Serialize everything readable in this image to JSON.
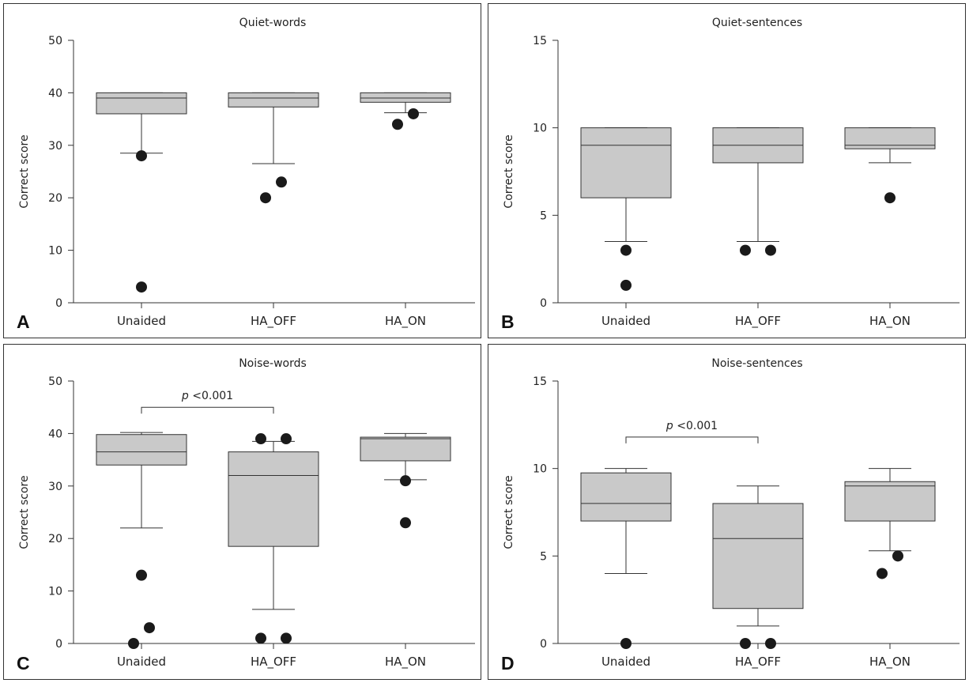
{
  "chart_data": [
    {
      "type": "box",
      "panel_label": "A",
      "title": "Quiet-words",
      "ylabel": "Correct score",
      "ylim": [
        0,
        50
      ],
      "yticks": [
        "0",
        "10",
        "20",
        "30",
        "40",
        "50"
      ],
      "categories": [
        "Unaided",
        "HA_OFF",
        "HA_ON"
      ],
      "boxes": [
        {
          "whisker_low": 28.5,
          "q1": 36,
          "median": 39,
          "q3": 40,
          "whisker_high": 40,
          "outliers": [
            28,
            3
          ]
        },
        {
          "whisker_low": 26.5,
          "q1": 37.3,
          "median": 39,
          "q3": 40,
          "whisker_high": 40,
          "outliers": [
            20,
            23
          ]
        },
        {
          "whisker_low": 36.2,
          "q1": 38.2,
          "median": 39,
          "q3": 40,
          "whisker_high": 40,
          "outliers": [
            34,
            36
          ]
        }
      ],
      "significance": null
    },
    {
      "type": "box",
      "panel_label": "B",
      "title": "Quiet-sentences",
      "ylabel": "Correct score",
      "ylim": [
        0,
        15
      ],
      "yticks": [
        "0",
        "5",
        "10",
        "15"
      ],
      "categories": [
        "Unaided",
        "HA_OFF",
        "HA_ON"
      ],
      "boxes": [
        {
          "whisker_low": 3.5,
          "q1": 6,
          "median": 9,
          "q3": 10,
          "whisker_high": 10,
          "outliers": [
            3,
            1
          ]
        },
        {
          "whisker_low": 3.5,
          "q1": 8,
          "median": 9,
          "q3": 10,
          "whisker_high": 10,
          "outliers": [
            3,
            3
          ]
        },
        {
          "whisker_low": 8,
          "q1": 8.8,
          "median": 9,
          "q3": 10,
          "whisker_high": 10,
          "outliers": [
            6
          ]
        }
      ],
      "significance": null
    },
    {
      "type": "box",
      "panel_label": "C",
      "title": "Noise-words",
      "ylabel": "Correct score",
      "ylim": [
        0,
        50
      ],
      "yticks": [
        "0",
        "10",
        "20",
        "30",
        "40",
        "50"
      ],
      "categories": [
        "Unaided",
        "HA_OFF",
        "HA_ON"
      ],
      "boxes": [
        {
          "whisker_low": 22,
          "q1": 34,
          "median": 36.5,
          "q3": 39.8,
          "whisker_high": 40.2,
          "outliers": [
            13,
            3,
            0
          ]
        },
        {
          "whisker_low": 6.5,
          "q1": 18.5,
          "median": 32,
          "q3": 36.5,
          "whisker_high": 38.5,
          "outliers": [
            39,
            39,
            1,
            1
          ]
        },
        {
          "whisker_low": 31.2,
          "q1": 34.8,
          "median": 39,
          "q3": 39.3,
          "whisker_high": 40,
          "outliers": [
            31,
            23
          ]
        }
      ],
      "significance": {
        "from": 0,
        "to": 1,
        "y": 45,
        "label": "p<0.001",
        "label_p": "p",
        "label_rest": "<0.001"
      }
    },
    {
      "type": "box",
      "panel_label": "D",
      "title": "Noise-sentences",
      "ylabel": "Correct score",
      "ylim": [
        0,
        15
      ],
      "yticks": [
        "0",
        "5",
        "10",
        "15"
      ],
      "categories": [
        "Unaided",
        "HA_OFF",
        "HA_ON"
      ],
      "boxes": [
        {
          "whisker_low": 4,
          "q1": 7,
          "median": 8,
          "q3": 9.75,
          "whisker_high": 10,
          "outliers": [
            0
          ]
        },
        {
          "whisker_low": 1,
          "q1": 2,
          "median": 6,
          "q3": 8,
          "whisker_high": 9,
          "outliers": [
            0,
            0
          ]
        },
        {
          "whisker_low": 5.3,
          "q1": 7,
          "median": 9,
          "q3": 9.25,
          "whisker_high": 10,
          "outliers": [
            5,
            4
          ]
        }
      ],
      "significance": {
        "from": 0,
        "to": 1,
        "y": 11.8,
        "label": "p<0.001",
        "label_p": "p",
        "label_rest": "<0.001"
      }
    }
  ],
  "colors": {
    "box_fill": "#c9c9c9",
    "stroke": "#333333",
    "outlier": "#1a1a1a"
  }
}
